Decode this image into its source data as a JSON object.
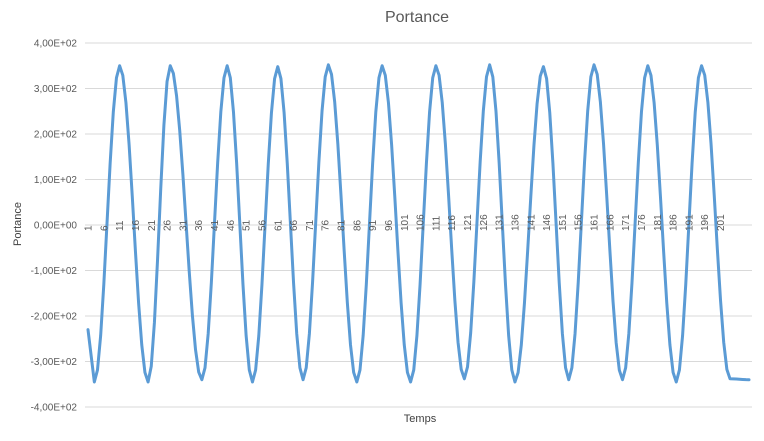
{
  "chart_data": {
    "type": "line",
    "title": "Portance",
    "xlabel": "Temps",
    "ylabel": "Portance",
    "ylim": [
      -400,
      400
    ],
    "y_ticks": [
      -400,
      -300,
      -200,
      -100,
      0,
      100,
      200,
      300,
      400
    ],
    "y_tick_labels": [
      "-4,00E+02",
      "-3,00E+02",
      "-2,00E+02",
      "-1,00E+02",
      "0,00E+00",
      "1,00E+02",
      "2,00E+02",
      "3,00E+02",
      "4,00E+02"
    ],
    "x_range": [
      1,
      210
    ],
    "x_tick_labels": [
      "1",
      "6",
      "11",
      "16",
      "21",
      "26",
      "31",
      "36",
      "41",
      "46",
      "51",
      "56",
      "61",
      "66",
      "71",
      "76",
      "81",
      "86",
      "91",
      "96",
      "101",
      "106",
      "111",
      "116",
      "121",
      "126",
      "131",
      "136",
      "141",
      "146",
      "151",
      "156",
      "161",
      "166",
      "171",
      "176",
      "181",
      "186",
      "191",
      "196",
      "201"
    ],
    "grid": "horizontal",
    "legend": "none",
    "series": [
      {
        "color": "#5b9bd5",
        "peaks": [
          [
            11,
            350
          ],
          [
            27,
            350
          ],
          [
            45,
            350
          ],
          [
            61,
            348
          ],
          [
            77,
            352
          ],
          [
            94,
            350
          ],
          [
            111,
            350
          ],
          [
            128,
            352
          ],
          [
            145,
            348
          ],
          [
            161,
            352
          ],
          [
            178,
            350
          ],
          [
            195,
            350
          ]
        ],
        "troughs": [
          [
            3,
            -345
          ],
          [
            20,
            -345
          ],
          [
            37,
            -340
          ],
          [
            53,
            -345
          ],
          [
            69,
            -340
          ],
          [
            86,
            -345
          ],
          [
            103,
            -345
          ],
          [
            120,
            -338
          ],
          [
            136,
            -345
          ],
          [
            153,
            -340
          ],
          [
            170,
            -340
          ],
          [
            187,
            -345
          ],
          [
            204,
            -338
          ]
        ],
        "start": [
          1,
          -230
        ],
        "end": [
          210,
          -340
        ]
      }
    ]
  }
}
